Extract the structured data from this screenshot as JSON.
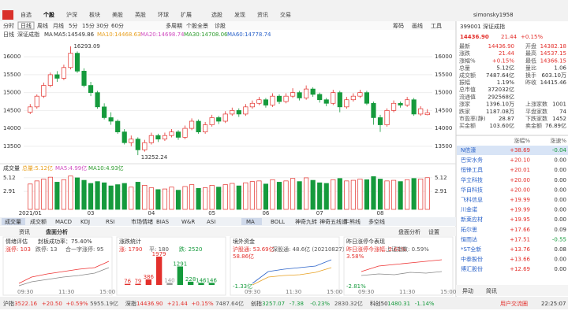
{
  "menu": [
    "自选",
    "个股",
    "沪深",
    "板块",
    "美股",
    "英股",
    "环球",
    "扩展",
    "选股",
    "发现",
    "资讯",
    "交易"
  ],
  "user": "simonsky1958",
  "periods": [
    "分时",
    "日线",
    "周线",
    "月线",
    "5分",
    "15分",
    "30分",
    "60分",
    "多周期",
    "个股全景",
    "诊股"
  ],
  "tools": [
    "筹码",
    "画线",
    "工具"
  ],
  "legend": {
    "period": "日线",
    "name": "深证成指",
    "ma": "MA",
    "items": [
      "MA5:14549.86",
      "MA10:14468.63",
      "MA20:14698.74",
      "MA30:14708.06",
      "MA60:14778.74"
    ]
  },
  "kline": {
    "type": "candlestick",
    "ylim": [
      13100,
      16400
    ],
    "yticks": [
      13500,
      14000,
      14500,
      15000,
      15500,
      16000
    ],
    "candles": [
      [
        14450,
        14680,
        14400,
        14600
      ],
      [
        14600,
        14950,
        14550,
        14900
      ],
      [
        14900,
        15280,
        14850,
        15200
      ],
      [
        15200,
        15560,
        15150,
        15500
      ],
      [
        15500,
        15600,
        15300,
        15400
      ],
      [
        15400,
        15780,
        15350,
        15700
      ],
      [
        15700,
        16293.09,
        15650,
        16100
      ],
      [
        16100,
        16150,
        15550,
        15600
      ],
      [
        15600,
        15680,
        15150,
        15200
      ],
      [
        15200,
        15300,
        14900,
        15000
      ],
      [
        15000,
        15050,
        14550,
        14600
      ],
      [
        14600,
        14700,
        14250,
        14300
      ],
      [
        14300,
        14450,
        14100,
        14200
      ],
      [
        14200,
        14250,
        13850,
        13900
      ],
      [
        13900,
        13980,
        13550,
        13600
      ],
      [
        13600,
        13800,
        13500,
        13700
      ],
      [
        13700,
        13750,
        13252.24,
        13400
      ],
      [
        13400,
        13680,
        13350,
        13600
      ],
      [
        13600,
        13880,
        13550,
        13800
      ],
      [
        13800,
        13850,
        13620,
        13700
      ],
      [
        13700,
        13880,
        13650,
        13800
      ],
      [
        13800,
        13980,
        13750,
        13900
      ],
      [
        13900,
        13950,
        13680,
        13750
      ],
      [
        13750,
        14080,
        13700,
        14000
      ],
      [
        14000,
        14280,
        13950,
        14200
      ],
      [
        14200,
        14250,
        13850,
        13900
      ],
      [
        13900,
        14180,
        13850,
        14100
      ],
      [
        14100,
        14380,
        14050,
        14300
      ],
      [
        14300,
        14350,
        14120,
        14200
      ],
      [
        14200,
        14480,
        14150,
        14400
      ],
      [
        14400,
        14580,
        14350,
        14500
      ],
      [
        14500,
        14560,
        14320,
        14400
      ],
      [
        14400,
        14680,
        14350,
        14600
      ],
      [
        14600,
        14780,
        14550,
        14700
      ],
      [
        14700,
        14880,
        14650,
        14800
      ],
      [
        14800,
        14850,
        14580,
        14650
      ],
      [
        14650,
        14980,
        14600,
        14900
      ],
      [
        14900,
        14950,
        14680,
        14750
      ],
      [
        14750,
        14980,
        14700,
        14900
      ],
      [
        14900,
        15120,
        14850,
        15000
      ],
      [
        15000,
        15050,
        14780,
        14850
      ],
      [
        14850,
        15200,
        14800,
        15100
      ],
      [
        15100,
        15150,
        14880,
        14950
      ],
      [
        14950,
        15000,
        14720,
        14800
      ],
      [
        14800,
        14850,
        14620,
        14700
      ],
      [
        14700,
        15080,
        14650,
        15000
      ],
      [
        15000,
        15050,
        14450,
        14600
      ],
      [
        14600,
        14880,
        14550,
        14800
      ],
      [
        14800,
        14980,
        14750,
        14900
      ],
      [
        14900,
        15080,
        14850,
        15000
      ],
      [
        15000,
        15050,
        14650,
        14700
      ],
      [
        14700,
        14750,
        14100,
        14300
      ],
      [
        14300,
        14380,
        13900,
        14100
      ],
      [
        14100,
        14560,
        14050,
        14500
      ],
      [
        14500,
        14780,
        14450,
        14700
      ],
      [
        14700,
        14750,
        14580,
        14650
      ],
      [
        14650,
        14880,
        14600,
        14800
      ],
      [
        14800,
        14850,
        14350,
        14400
      ],
      [
        14400,
        14620,
        14350,
        14550
      ],
      [
        14382.18,
        14537.15,
        14366.15,
        14436.9
      ]
    ],
    "dates": [
      "2021/01",
      null,
      null,
      null,
      null,
      null,
      null,
      null,
      null,
      "03",
      null,
      null,
      null,
      null,
      null,
      null,
      null,
      null,
      "04",
      null,
      null,
      null,
      null,
      null,
      null,
      null,
      null,
      "05",
      null,
      null,
      null,
      null,
      null,
      null,
      null,
      "06",
      null,
      null,
      null,
      null,
      null,
      null,
      null,
      "07",
      null,
      null,
      null,
      null,
      null,
      null,
      null,
      null,
      "08",
      null,
      null,
      null,
      null,
      null,
      null,
      null
    ]
  },
  "volume": {
    "title": "成交量",
    "items": [
      "总量:5.12亿",
      "MA5:4.99亿",
      "MA10:4.93亿"
    ],
    "ylim": [
      0,
      5.6
    ],
    "yticks": [
      2.91,
      5.12
    ],
    "values": [
      4.1,
      4.6,
      4.9,
      5.2,
      4.4,
      4.8,
      5.4,
      5.1,
      4.7,
      4.2,
      4.5,
      4.3,
      3.8,
      4.0,
      4.2,
      3.6,
      4.4,
      3.9,
      3.5,
      3.2,
      3.3,
      3.6,
      3.1,
      3.7,
      4.0,
      3.4,
      3.5,
      3.9,
      3.6,
      4.0,
      4.2,
      3.8,
      4.3,
      4.5,
      4.6,
      4.1,
      4.8,
      4.4,
      4.6,
      5.0,
      4.5,
      5.1,
      4.7,
      4.3,
      4.2,
      4.8,
      5.0,
      4.6,
      4.7,
      4.9,
      4.8,
      5.3,
      4.9,
      4.6,
      4.7,
      4.5,
      4.8,
      5.0,
      4.9,
      5.12
    ]
  },
  "indicator_tabs": [
    "成交量",
    "成交额",
    "MACD",
    "KDJ",
    "RSI",
    "市场情绪",
    "BIAS",
    "W&R",
    "ASI"
  ],
  "overlay_tabs": [
    "MA",
    "BOLL",
    "神奇九转",
    "神奇五线谱",
    "牛熊线",
    "多空线"
  ],
  "panel": {
    "tabs": [
      "资讯",
      "盘面分析"
    ],
    "right": [
      "盘面分析",
      "设置"
    ],
    "sections": [
      {
        "title": "情绪评估",
        "sub": "封板成功率：75.40%",
        "stats": [
          "涨停: 103",
          "跌停: 13",
          "合一字涨停: 95"
        ],
        "times": [
          "09:30",
          "11:30",
          "15:00"
        ]
      },
      {
        "title": "涨跌统计",
        "stats": [
          "涨: 1790",
          "平: 180",
          "跌: 2520"
        ],
        "bars": [
          76,
          79,
          386,
          1979,
          140,
          1291,
          228,
          146,
          146
        ]
      },
      {
        "title": "境外资金",
        "stats": [
          "沪股通: 53.69亿",
          "深股通: 48.6亿 (20210827)"
        ],
        "axis": [
          "58.86亿",
          "-1.33亿"
        ],
        "times": [
          "09:30",
          "11:30",
          "15:00"
        ]
      },
      {
        "title": "昨日涨停今表现",
        "stats": [
          "昨日涨停今涨幅: 2.61%",
          "上证指数: 0.59%"
        ],
        "axis": [
          "3.58%",
          "-2.81%"
        ],
        "times": [
          "09:30",
          "11:30",
          "15:00"
        ]
      }
    ]
  },
  "status": [
    [
      "沪指",
      "3522.16",
      "+20.50",
      "+0.59%",
      "5955.19亿"
    ],
    [
      "深指",
      "14436.90",
      "+21.44",
      "+0.15%",
      "7487.64亿"
    ],
    [
      "创指",
      "3257.07",
      "-7.38",
      "-0.23%",
      "2830.32亿"
    ],
    [
      "科创50",
      "1480.31",
      "-1.14%"
    ]
  ],
  "status_right": [
    "用户交流圈",
    "22:25:07"
  ],
  "quote": {
    "code": "399001",
    "name": "深证成指",
    "price": "14436.90",
    "change": "21.44",
    "pct": "+0.15%",
    "rows": [
      [
        "最新",
        "14436.90",
        "开盘",
        "14382.18"
      ],
      [
        "涨跌",
        "21.44",
        "最高",
        "14537.15"
      ],
      [
        "涨幅%",
        "+0.15%",
        "最低",
        "14366.15"
      ],
      [
        "总量",
        "5.12亿",
        "量比",
        "1.06"
      ],
      [
        "成交额",
        "7487.64亿",
        "换手",
        "603.10万"
      ],
      [
        "振幅",
        "1.19%",
        "昨收",
        "14415.46"
      ],
      [
        "总市值",
        "372032亿"
      ],
      [
        "流通值",
        "292568亿"
      ],
      [
        "涨家",
        "1396.10万",
        "上涨家数",
        "1001"
      ],
      [
        "跌家",
        "1187.08万",
        "平盘家数",
        "74"
      ],
      [
        "市盈率(静)",
        "28.87",
        "下跌家数",
        "1452"
      ],
      [
        "买金额",
        "103.60亿",
        "卖金额",
        "76.89亿"
      ]
    ]
  },
  "list": {
    "header": [
      "涨幅%",
      "涨速%"
    ],
    "rows": [
      [
        "N信濠",
        "+38.69",
        "-0.04"
      ],
      [
        "巴安水务",
        "+20.10",
        "0.00"
      ],
      [
        "恒锋工具",
        "+20.01",
        "0.00"
      ],
      [
        "华立科技",
        "+20.00",
        "0.00"
      ],
      [
        "华自科技",
        "+20.00",
        "0.00"
      ],
      [
        "飞科信息",
        "+19.99",
        "0.00"
      ],
      [
        "川金诺",
        "+19.99",
        "0.00"
      ],
      [
        "新莱应材",
        "+19.95",
        "0.00"
      ],
      [
        "拓尔思",
        "+17.66",
        "0.09"
      ],
      [
        "恒而达",
        "+17.51",
        "-0.55"
      ],
      [
        "*ST全新",
        "+13.76",
        "0.08"
      ],
      [
        "中泰股份",
        "+13.66",
        "0.00"
      ],
      [
        "博汇股份",
        "+12.69",
        "0.00"
      ]
    ]
  },
  "bottom_tabs": [
    "异动",
    "简讯"
  ]
}
